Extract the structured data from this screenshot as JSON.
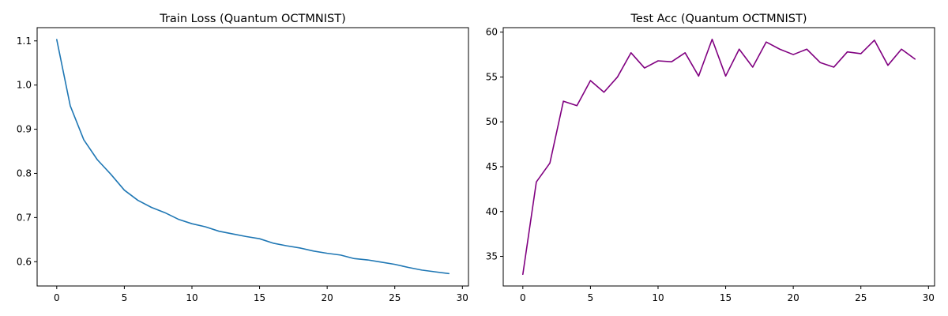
{
  "chart_data": [
    {
      "type": "line",
      "title": "Train Loss (Quantum OCTMNIST)",
      "xlabel": "",
      "ylabel": "",
      "xlim": [
        -1.45,
        30.45
      ],
      "ylim": [
        0.545,
        1.13
      ],
      "xticks": [
        0,
        5,
        10,
        15,
        20,
        25,
        30
      ],
      "xtick_labels": [
        "0",
        "5",
        "10",
        "15",
        "20",
        "25",
        "30"
      ],
      "yticks": [
        0.6,
        0.7,
        0.8,
        0.9,
        1.0,
        1.1
      ],
      "ytick_labels": [
        "0.6",
        "0.7",
        "0.8",
        "0.9",
        "1.0",
        "1.1"
      ],
      "grid": false,
      "color": "#1f77b4",
      "x": [
        0,
        1,
        2,
        3,
        4,
        5,
        6,
        7,
        8,
        9,
        10,
        11,
        12,
        13,
        14,
        15,
        16,
        17,
        18,
        19,
        20,
        21,
        22,
        23,
        24,
        25,
        26,
        27,
        28,
        29
      ],
      "y": [
        1.103,
        0.953,
        0.876,
        0.831,
        0.798,
        0.762,
        0.739,
        0.723,
        0.711,
        0.696,
        0.686,
        0.679,
        0.669,
        0.663,
        0.657,
        0.652,
        0.642,
        0.636,
        0.631,
        0.624,
        0.619,
        0.615,
        0.607,
        0.604,
        0.599,
        0.594,
        0.587,
        0.581,
        0.577,
        0.573
      ]
    },
    {
      "type": "line",
      "title": "Test Acc (Quantum OCTMNIST)",
      "xlabel": "",
      "ylabel": "",
      "xlim": [
        -1.45,
        30.45
      ],
      "ylim": [
        31.7,
        60.5
      ],
      "xticks": [
        0,
        5,
        10,
        15,
        20,
        25,
        30
      ],
      "xtick_labels": [
        "0",
        "5",
        "10",
        "15",
        "20",
        "25",
        "30"
      ],
      "yticks": [
        35,
        40,
        45,
        50,
        55,
        60
      ],
      "ytick_labels": [
        "35",
        "40",
        "45",
        "50",
        "55",
        "60"
      ],
      "grid": false,
      "color": "#800080",
      "x": [
        0,
        1,
        2,
        3,
        4,
        5,
        6,
        7,
        8,
        9,
        10,
        11,
        12,
        13,
        14,
        15,
        16,
        17,
        18,
        19,
        20,
        21,
        22,
        23,
        24,
        25,
        26,
        27,
        28,
        29
      ],
      "y": [
        33.0,
        43.3,
        45.4,
        52.3,
        51.8,
        54.6,
        53.3,
        55.0,
        57.7,
        56.0,
        56.8,
        56.7,
        57.7,
        55.1,
        59.2,
        55.1,
        58.1,
        56.1,
        58.9,
        58.1,
        57.5,
        58.1,
        56.6,
        56.1,
        57.8,
        57.6,
        59.1,
        56.3,
        58.1,
        57.0
      ]
    }
  ]
}
